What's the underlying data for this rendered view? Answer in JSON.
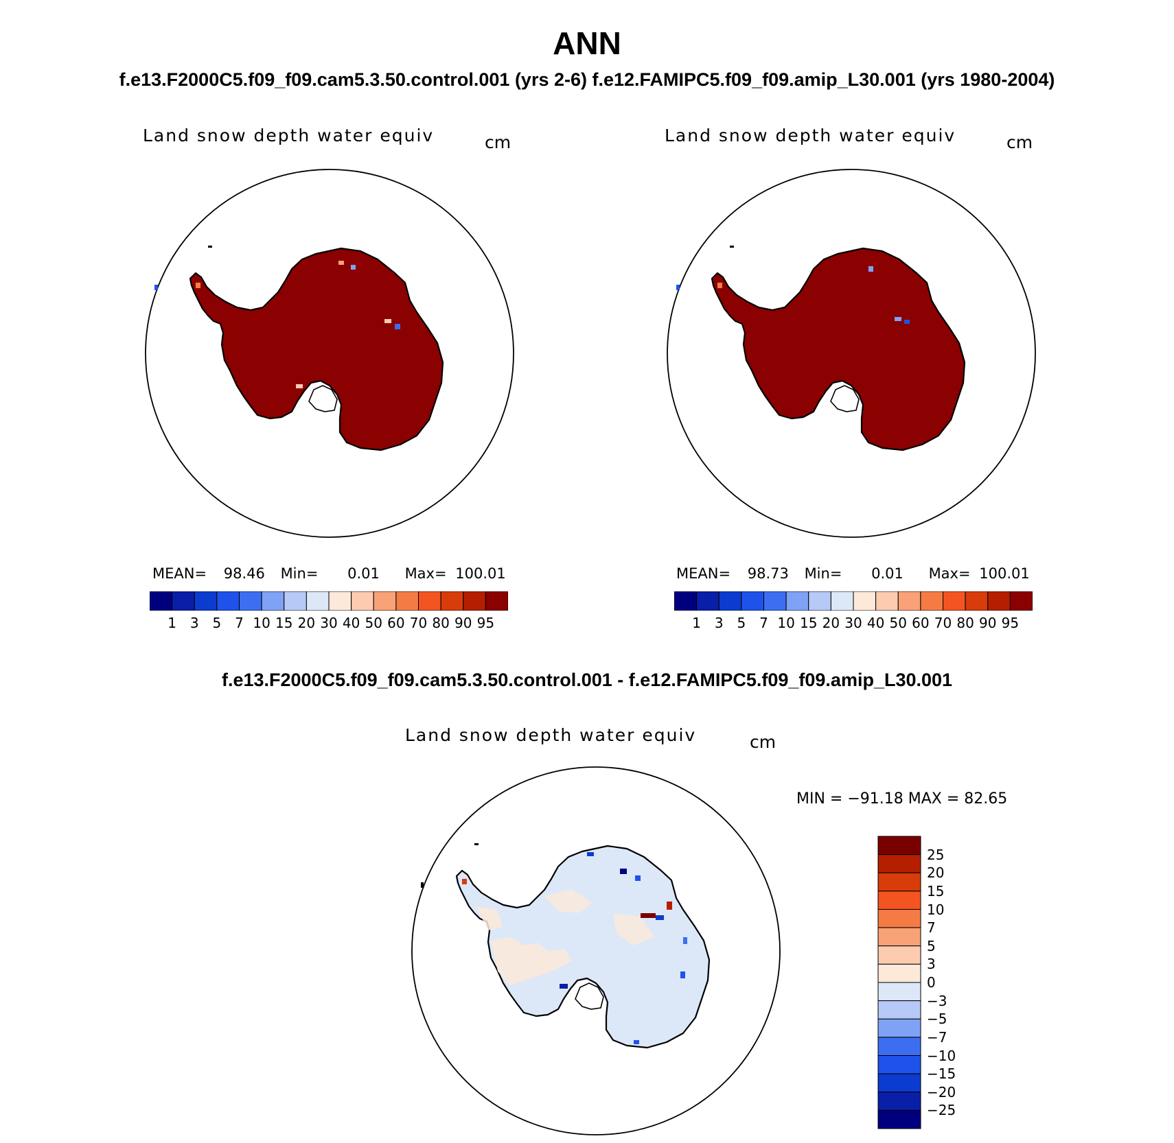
{
  "title": "ANN",
  "subtitle": "f.e13.F2000C5.f09_f09.cam5.3.50.control.001 (yrs 2-6)  f.e12.FAMIPC5.f09_f09.amip_L30.001 (yrs 1980-2004)",
  "diff_subtitle": "f.e13.F2000C5.f09_f09.cam5.3.50.control.001 - f.e12.FAMIPC5.f09_f09.amip_L30.001",
  "panels": [
    {
      "variable": "Land snow depth water equiv",
      "units": "cm",
      "mean_label": "MEAN=",
      "mean": "98.46",
      "min_label": "Min=",
      "min": "0.01",
      "max_label": "Max=",
      "max": "100.01"
    },
    {
      "variable": "Land snow depth water equiv",
      "units": "cm",
      "mean_label": "MEAN=",
      "mean": "98.73",
      "min_label": "Min=",
      "min": "0.01",
      "max_label": "Max=",
      "max": "100.01"
    }
  ],
  "diff_panel": {
    "variable": "Land snow depth water equiv",
    "units": "cm",
    "minmax_text": "MIN = −91.18 MAX =   82.65"
  },
  "colorbar_levels": [
    "1",
    "3",
    "5",
    "7",
    "10",
    "15",
    "20",
    "30",
    "40",
    "50",
    "60",
    "70",
    "80",
    "90",
    "95"
  ],
  "colorbar_colors": [
    "#00007f",
    "#0a1fa8",
    "#0c3ccf",
    "#1f52eb",
    "#3d6ef2",
    "#7fa2f5",
    "#b6c9f7",
    "#dce8f8",
    "#fde9d9",
    "#fccbb0",
    "#f9a277",
    "#f57b45",
    "#f45421",
    "#d83c0a",
    "#b51f00",
    "#8b0000"
  ],
  "diff_levels": [
    "25",
    "20",
    "15",
    "10",
    "7",
    "5",
    "3",
    "0",
    "−3",
    "−5",
    "−7",
    "−10",
    "−15",
    "−20",
    "−25"
  ],
  "diff_colors": [
    "#7a0000",
    "#b51f00",
    "#d83c0a",
    "#f45421",
    "#f57b45",
    "#f9a277",
    "#fccbb0",
    "#fde9d9",
    "#dce8f8",
    "#b6c9f7",
    "#7fa2f5",
    "#3d6ef2",
    "#1f52eb",
    "#0c3ccf",
    "#0a1fa8",
    "#00007f"
  ],
  "map_colors": {
    "snow_high": "#8b0000",
    "diff_land": "#dce8f8",
    "diff_pos": "#fde9d9"
  }
}
